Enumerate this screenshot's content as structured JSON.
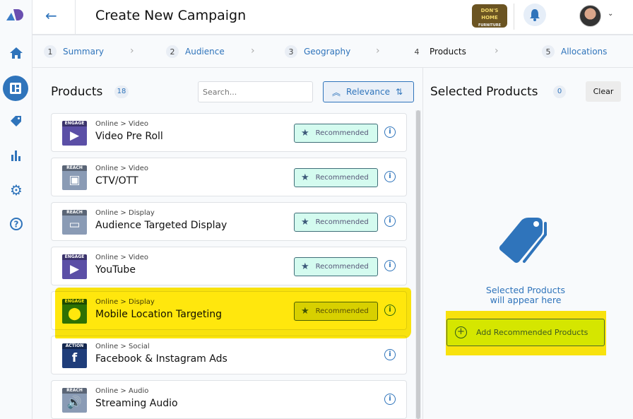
{
  "header": {
    "title": "Create New Campaign",
    "brand_logo_text": "DON'S HOME FURNITURE"
  },
  "sidebar": {
    "items": [
      {
        "icon": "home-icon"
      },
      {
        "icon": "dashboard-icon"
      },
      {
        "icon": "tag-icon"
      },
      {
        "icon": "bar-chart-icon"
      },
      {
        "icon": "gear-icon"
      },
      {
        "icon": "help-icon"
      }
    ]
  },
  "stepper": [
    {
      "num": "1",
      "label": "Summary"
    },
    {
      "num": "2",
      "label": "Audience"
    },
    {
      "num": "3",
      "label": "Geography"
    },
    {
      "num": "4",
      "label": "Products",
      "active": true
    },
    {
      "num": "5",
      "label": "Allocations"
    }
  ],
  "products": {
    "title": "Products",
    "count": "18",
    "search_placeholder": "Search...",
    "sort_label": "Relevance",
    "items": [
      {
        "tier": "ENGAGE",
        "category": "Online > Video",
        "name": "Video Pre Roll",
        "recommended": "Recommended",
        "color": "#5b4fa6",
        "glyph": "▶"
      },
      {
        "tier": "REACH",
        "category": "Online > Video",
        "name": "CTV/OTT",
        "recommended": "Recommended",
        "color": "#8a9bb5",
        "glyph": "▣"
      },
      {
        "tier": "REACH",
        "category": "Online > Display",
        "name": "Audience Targeted Display",
        "recommended": "Recommended",
        "color": "#8a9bb5",
        "glyph": "▭"
      },
      {
        "tier": "ENGAGE",
        "category": "Online > Video",
        "name": "YouTube",
        "recommended": "Recommended",
        "color": "#5b4fa6",
        "glyph": "▶"
      },
      {
        "tier": "ENGAGE",
        "category": "Online > Display",
        "name": "Mobile Location Targeting",
        "recommended": "Recommended",
        "color": "#2e7d3a",
        "glyph": "⬤"
      },
      {
        "tier": "ACTION",
        "category": "Online > Social",
        "name": "Facebook & Instagram Ads",
        "recommended": "",
        "color": "#1f3d7a",
        "glyph": "f"
      },
      {
        "tier": "REACH",
        "category": "Online > Audio",
        "name": "Streaming Audio",
        "recommended": "",
        "color": "#8a9bb5",
        "glyph": "🔊"
      }
    ]
  },
  "selected": {
    "title": "Selected Products",
    "count": "0",
    "clear_label": "Clear",
    "empty_line1": "Selected Products",
    "empty_line2": "will appear here",
    "add_recommended_label": "Add Recommended Products"
  },
  "colors": {
    "accent": "#2f74bb",
    "highlight": "#ffe600"
  }
}
